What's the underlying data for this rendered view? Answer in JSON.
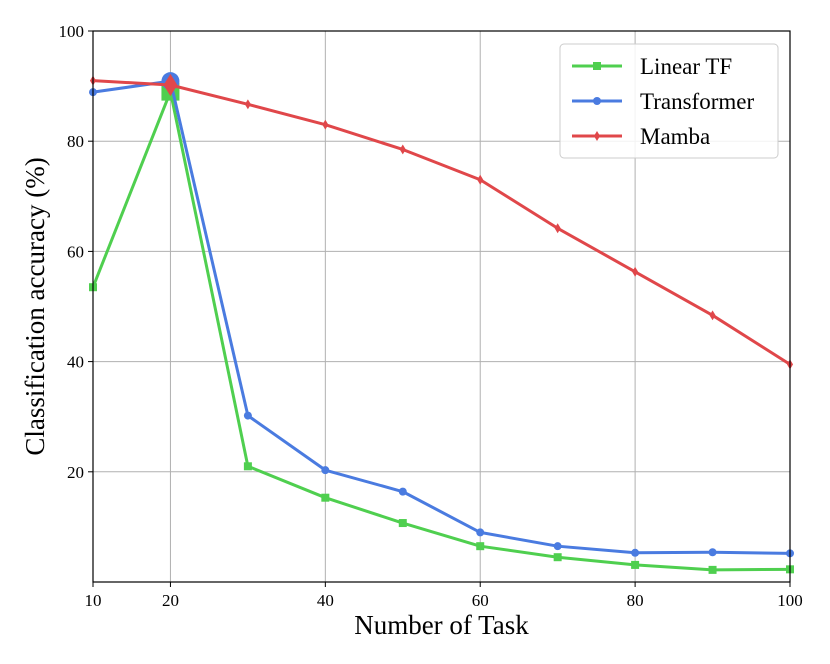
{
  "chart_data": {
    "type": "line",
    "title": "",
    "xlabel": "Number of Task",
    "ylabel": "Classification accuracy (%)",
    "xlim": [
      10,
      100
    ],
    "ylim": [
      0,
      100
    ],
    "xticks": [
      10,
      20,
      40,
      60,
      80,
      100
    ],
    "yticks": [
      20,
      40,
      60,
      80,
      100
    ],
    "grid": true,
    "legend": "top-right",
    "x": [
      10,
      20,
      30,
      40,
      50,
      60,
      70,
      80,
      90,
      100
    ],
    "series": [
      {
        "name": "Linear TF",
        "color": "#4fcf4f",
        "marker": "square",
        "values": [
          53.5,
          89.0,
          21.0,
          15.3,
          10.7,
          6.5,
          4.5,
          3.1,
          2.2,
          2.3
        ]
      },
      {
        "name": "Transformer",
        "color": "#4a7be0",
        "marker": "circle",
        "values": [
          88.9,
          90.9,
          30.2,
          20.3,
          16.4,
          9.0,
          6.5,
          5.3,
          5.4,
          5.2
        ]
      },
      {
        "name": "Mamba",
        "color": "#e0474a",
        "marker": "diamond",
        "values": [
          91.0,
          90.2,
          86.7,
          83.0,
          78.5,
          73.0,
          64.2,
          56.3,
          48.4,
          39.5
        ]
      }
    ]
  }
}
